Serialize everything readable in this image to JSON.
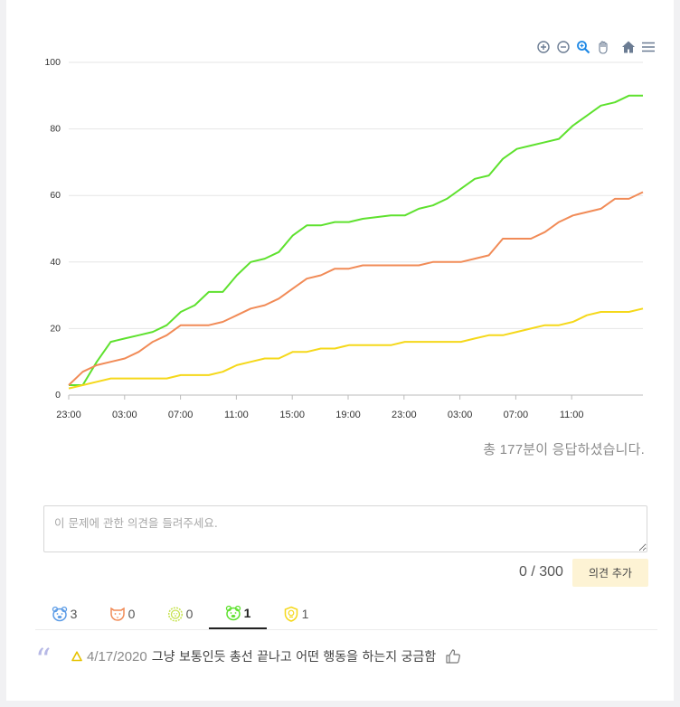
{
  "chart_data": {
    "type": "line",
    "x_ticks": [
      "23:00",
      "03:00",
      "07:00",
      "11:00",
      "15:00",
      "19:00",
      "23:00",
      "03:00",
      "07:00",
      "11:00"
    ],
    "ylim": [
      0,
      100
    ],
    "y_ticks": [
      "0",
      "20",
      "40",
      "60",
      "80",
      "100"
    ],
    "grid": "horizontal",
    "legend": "none",
    "series": [
      {
        "color": "#5ee12e",
        "values": [
          3,
          3,
          10,
          16,
          17,
          18,
          19,
          21,
          25,
          27,
          31,
          31,
          36,
          40,
          41,
          43,
          48,
          51,
          51,
          52,
          52,
          53,
          53.5,
          54,
          54,
          56,
          57,
          59,
          62,
          65,
          66,
          71,
          74,
          75,
          76,
          77,
          81,
          84,
          87,
          88,
          90,
          90
        ]
      },
      {
        "color": "#f18b57",
        "values": [
          3,
          7,
          9,
          10,
          11,
          13,
          16,
          18,
          21,
          21,
          21,
          22,
          24,
          26,
          27,
          29,
          32,
          35,
          36,
          38,
          38,
          39,
          39,
          39,
          39,
          39,
          40,
          40,
          40,
          41,
          42,
          47,
          47,
          47,
          49,
          52,
          54,
          55,
          56,
          59,
          59,
          61
        ]
      },
      {
        "color": "#f5d81a",
        "values": [
          2,
          3,
          4,
          5,
          5,
          5,
          5,
          5,
          6,
          6,
          6,
          7,
          9,
          10,
          11,
          11,
          13,
          13,
          14,
          14,
          15,
          15,
          15,
          15,
          16,
          16,
          16,
          16,
          16,
          17,
          18,
          18,
          19,
          20,
          21,
          21,
          22,
          24,
          25,
          25,
          25,
          26
        ]
      }
    ]
  },
  "toolbar": {
    "icons": [
      "zoom-in-icon",
      "zoom-out-icon",
      "magnifier-icon",
      "pan-hand-icon",
      "home-icon",
      "menu-icon"
    ]
  },
  "summary": {
    "total_text": "총 177분이 응답하셨습니다."
  },
  "comment": {
    "placeholder": "이 문제에 관한 의견을 들려주세요.",
    "counter": "0 / 300",
    "add_button": "의견 추가"
  },
  "tabs": [
    {
      "icon": "blue-bear-icon",
      "color": "#5b9be6",
      "count": "3"
    },
    {
      "icon": "orange-tiger-icon",
      "color": "#f18b57",
      "count": "0"
    },
    {
      "icon": "green-lion-icon",
      "color": "#c6e24f",
      "count": "0"
    },
    {
      "icon": "green-bear-icon",
      "color": "#5ee12e",
      "count": "1",
      "active": true
    },
    {
      "icon": "yellow-shield-icon",
      "color": "#f5d81a",
      "count": "1"
    }
  ],
  "opinion": {
    "badge_icon": "warning-triangle-icon",
    "date": "4/17/2020",
    "text": "그냥 보통인듯 총선 끝나고 어떤 행동을 하는지 궁금함",
    "like_icon": "thumbs-up-icon"
  }
}
